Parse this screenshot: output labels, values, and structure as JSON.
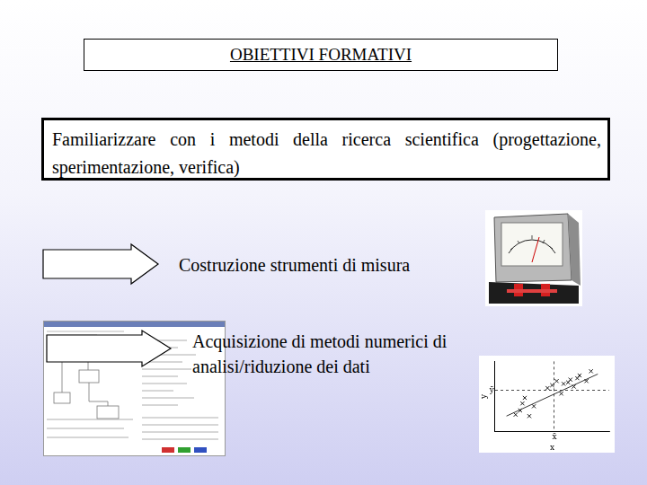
{
  "slide": {
    "title": "OBIETTIVI FORMATIVI",
    "box_text": "Familiarizzare con i metodi della ricerca scientifica (progettazione, sperimentazione, verifica)",
    "items": [
      "Costruzione strumenti di misura",
      "Acquisizione di metodi numerici di analisi/riduzione dei dati"
    ]
  },
  "chart_data": {
    "type": "scatter",
    "x_label": "x",
    "y_label": "y",
    "xlim": [
      0,
      10
    ],
    "ylim": [
      0,
      10
    ],
    "xticks": [
      {
        "value": 5.2,
        "label": "x̄"
      }
    ],
    "yticks": [
      {
        "value": 5.9,
        "label": "ȳ"
      }
    ],
    "grid": true,
    "legend": "none",
    "series": [
      {
        "type": "scatter",
        "marker": "x",
        "color": "#1a1a1a",
        "x": [
          1.8,
          2.2,
          2.4,
          2.6,
          3.0,
          3.4,
          4.6,
          5.0,
          5.4,
          5.8,
          6.0,
          6.4,
          6.6,
          6.9,
          7.2,
          7.4,
          8.0,
          8.4
        ],
        "values": [
          2.4,
          3.0,
          4.0,
          4.8,
          2.2,
          3.6,
          6.2,
          6.6,
          7.2,
          5.4,
          6.8,
          7.0,
          7.4,
          6.4,
          7.6,
          8.0,
          7.2,
          8.6
        ]
      },
      {
        "type": "line",
        "line_style": "solid",
        "color": "#333333",
        "x": [
          1.0,
          9.0
        ],
        "values": [
          2.2,
          8.2
        ]
      }
    ]
  }
}
